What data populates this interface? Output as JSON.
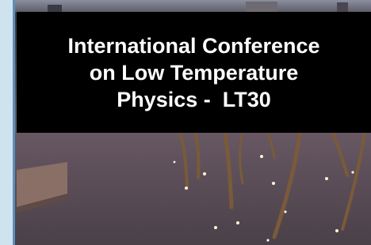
{
  "banner": {
    "title_lines": [
      "International Conference",
      "on Low Temperature",
      "Physics -  LT30"
    ]
  }
}
